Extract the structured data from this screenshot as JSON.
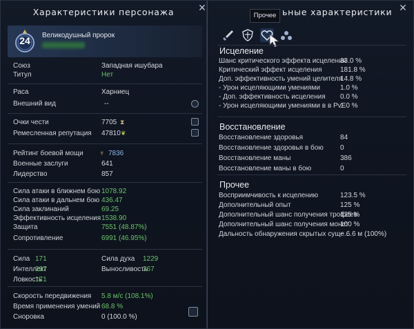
{
  "left": {
    "title": "Характеристики персонажа",
    "character": {
      "level": "24",
      "name": "Великодушный пророк"
    },
    "info": [
      {
        "label": "Союз",
        "value": "Западная ишубара"
      },
      {
        "label": "Титул",
        "value": "Нет"
      }
    ],
    "appearance": [
      {
        "label": "Раса",
        "value": "Харниец"
      },
      {
        "label": "Внешний вид",
        "value": "--"
      }
    ],
    "reputation": [
      {
        "label": "Очки чести",
        "value": "7705"
      },
      {
        "label": "Ремесленная репутация",
        "value": "47810"
      }
    ],
    "military": [
      {
        "label": "Рейтинг боевой мощи",
        "value": "7836"
      },
      {
        "label": "Военные заслуги",
        "value": "641"
      },
      {
        "label": "Лидерство",
        "value": "857"
      }
    ],
    "combat": [
      {
        "label": "Сила атаки в ближнем бою",
        "value": "1078.92"
      },
      {
        "label": "Сила атаки в дальнем бою",
        "value": "436.47"
      },
      {
        "label": "Сила заклинаний",
        "value": "69.25"
      },
      {
        "label": "Эффективность исцеления",
        "value": "1538.90"
      },
      {
        "label": "Защита",
        "value": "7551 (48.87%)"
      },
      {
        "label": "Сопротивление",
        "value": "6991 (46.95%)"
      }
    ],
    "attributes": [
      {
        "label": "Сила",
        "value": "171",
        "label2": "Сила духа",
        "value2": "1229"
      },
      {
        "label": "Интеллект",
        "value": "237",
        "label2": "Выносливость",
        "value2": "267"
      },
      {
        "label": "Ловкость",
        "value": "171"
      }
    ],
    "speed": [
      {
        "label": "Скорость передвижения",
        "value": "5.8 м/с (108.1%)"
      },
      {
        "label": "Время применения умений",
        "value": "68.8 %"
      },
      {
        "label": "Сноровка",
        "value": "0 (100.0 %)"
      }
    ]
  },
  "right": {
    "title": "ьные характеристики",
    "tooltip": "Прочее",
    "healing": {
      "heading": "Исцеление",
      "rows": [
        {
          "label": "Шанс критического эффекта исцеления",
          "value": "33.0 %"
        },
        {
          "label": "Критический эффект исцеления",
          "value": "181.8 %"
        },
        {
          "label": "Доп. эффективность умений целителя",
          "value": "14.8 %"
        },
        {
          "label": "- Урон исцеляющими умениями",
          "value": "1.0 %"
        },
        {
          "label": "- Доп. эффективность исцеления",
          "value": "0.0 %"
        },
        {
          "label": "- Урон исцеляющими умениями в в PvE",
          "value": "1.0 %"
        }
      ]
    },
    "regen": {
      "heading": "Восстановление",
      "rows": [
        {
          "label": "Восстановление здоровья",
          "value": "84"
        },
        {
          "label": "Восстановление здоровья в бою",
          "value": "0"
        },
        {
          "label": "Восстановление маны",
          "value": "386"
        },
        {
          "label": "Восстановление маны в бою",
          "value": "0"
        }
      ]
    },
    "other": {
      "heading": "Прочее",
      "rows": [
        {
          "label": "Восприимчивость к исцелению",
          "value": "123.5 %"
        },
        {
          "label": "Дополнительный опыт",
          "value": "125 %"
        },
        {
          "label": "Дополнительный шанс получения трофеев",
          "value": "125 %"
        },
        {
          "label": "Дополнительный шанс получения монет",
          "value": "100 %"
        },
        {
          "label": "Дальность обнаружения скрытых суще...",
          "value": "~ 6.6 м (100%)"
        }
      ]
    }
  },
  "colors": {
    "green": "#6cc36b",
    "blue": "#8fb4e6",
    "panel": "#111827"
  },
  "icons": [
    "close-icon",
    "level-emblem-icon",
    "hourglass-icon",
    "wings-icon",
    "shop-cart-icon",
    "trident-icon",
    "refresh-icon",
    "list-icon",
    "sword-tab-icon",
    "shield-tab-icon",
    "heart-tab-icon",
    "dots-tab-icon",
    "cursor-icon"
  ]
}
